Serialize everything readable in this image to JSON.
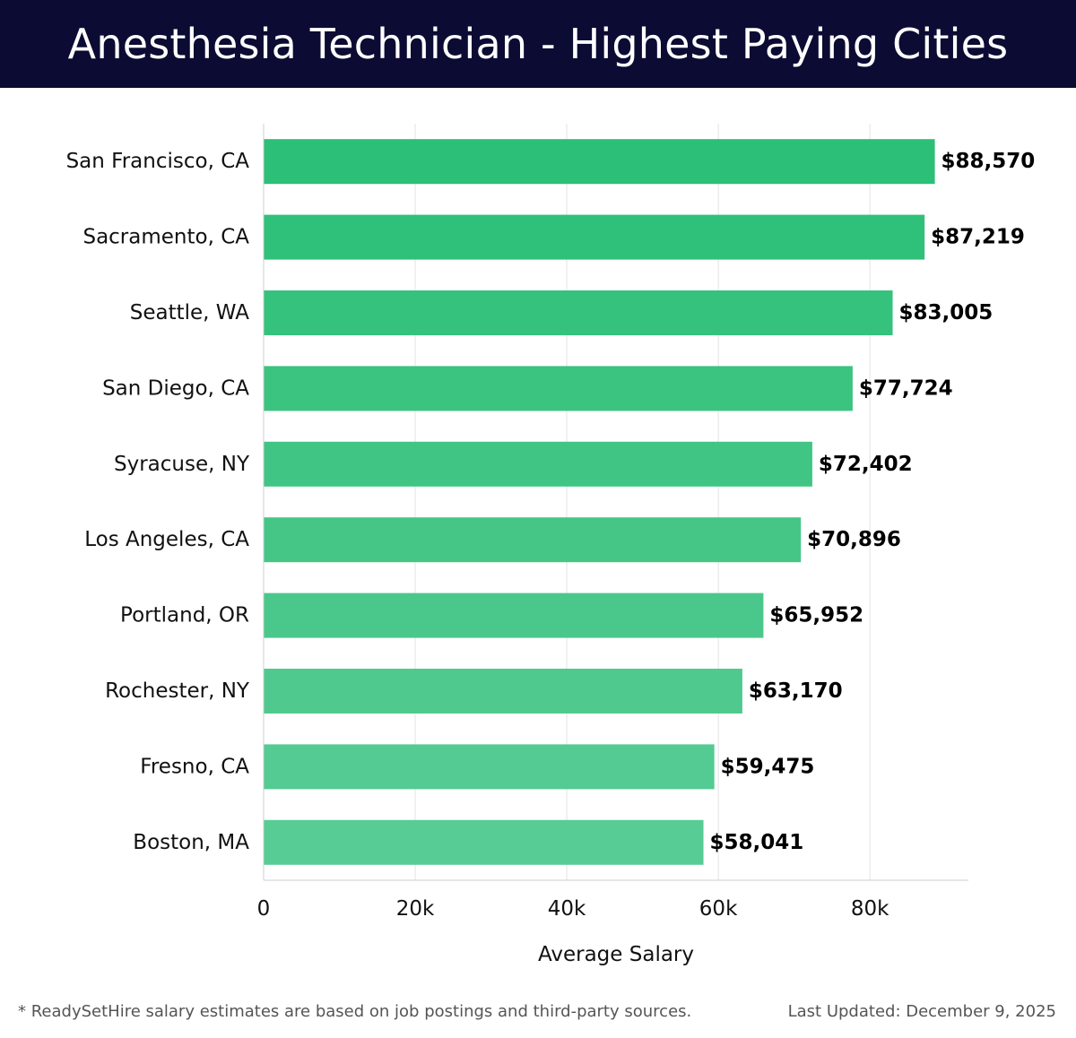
{
  "header": {
    "title": "Anesthesia Technician - Highest Paying Cities"
  },
  "chart_data": {
    "type": "bar",
    "orientation": "horizontal",
    "categories": [
      "San Francisco, CA",
      "Sacramento, CA",
      "Seattle, WA",
      "San Diego, CA",
      "Syracuse, NY",
      "Los Angeles, CA",
      "Portland, OR",
      "Rochester, NY",
      "Fresno, CA",
      "Boston, MA"
    ],
    "values": [
      88570,
      87219,
      83005,
      77724,
      72402,
      70896,
      65952,
      63170,
      59475,
      58041
    ],
    "value_labels": [
      "$88,570",
      "$87,219",
      "$83,005",
      "$77,724",
      "$72,402",
      "$70,896",
      "$65,952",
      "$63,170",
      "$59,475",
      "$58,041"
    ],
    "xlabel": "Average Salary",
    "xlim": [
      0,
      93000
    ],
    "x_ticks": [
      0,
      20000,
      40000,
      60000,
      80000
    ],
    "x_tick_labels": [
      "0",
      "20k",
      "40k",
      "60k",
      "80k"
    ],
    "grid": "vertical",
    "bar_colors": [
      "#2bbf77",
      "#2fc079",
      "#35c27d",
      "#3bc380",
      "#40c584",
      "#45c687",
      "#4ac88b",
      "#4fc98e",
      "#53cb92",
      "#57cc95"
    ]
  },
  "footer": {
    "note": "* ReadySetHire salary estimates are based on job postings and third-party sources.",
    "updated": "Last Updated: December 9, 2025"
  }
}
